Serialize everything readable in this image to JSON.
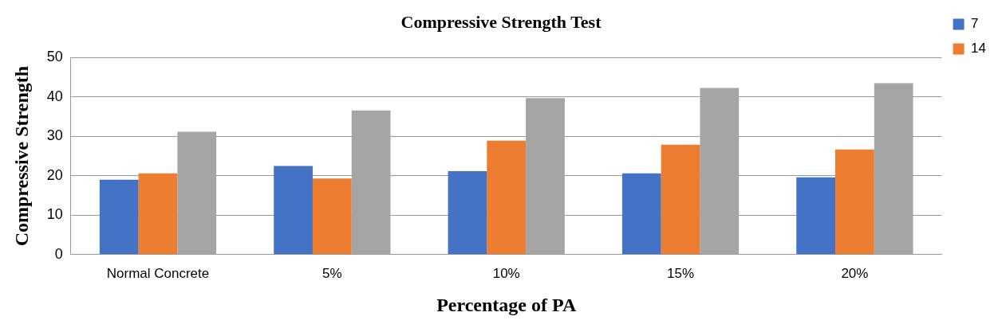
{
  "chart_data": {
    "type": "bar",
    "title": "Compressive Strength Test",
    "xlabel": "Percentage of PA",
    "ylabel": "Compressive Strength",
    "categories": [
      "Normal Concrete",
      "5%",
      "10%",
      "15%",
      "20%"
    ],
    "series": [
      {
        "name": "7",
        "color": "#4472c4",
        "values": [
          19.0,
          22.5,
          21.2,
          20.6,
          19.6
        ]
      },
      {
        "name": "14",
        "color": "#ed7d31",
        "values": [
          20.6,
          19.3,
          28.9,
          27.9,
          26.7
        ]
      },
      {
        "color": "#a5a5a5",
        "values": [
          31.2,
          36.6,
          39.7,
          42.3,
          43.5
        ]
      }
    ],
    "ylim": [
      0,
      50
    ],
    "yticks": [
      0,
      10,
      20,
      30,
      40,
      50
    ],
    "grid": "y",
    "legend": "top right"
  }
}
